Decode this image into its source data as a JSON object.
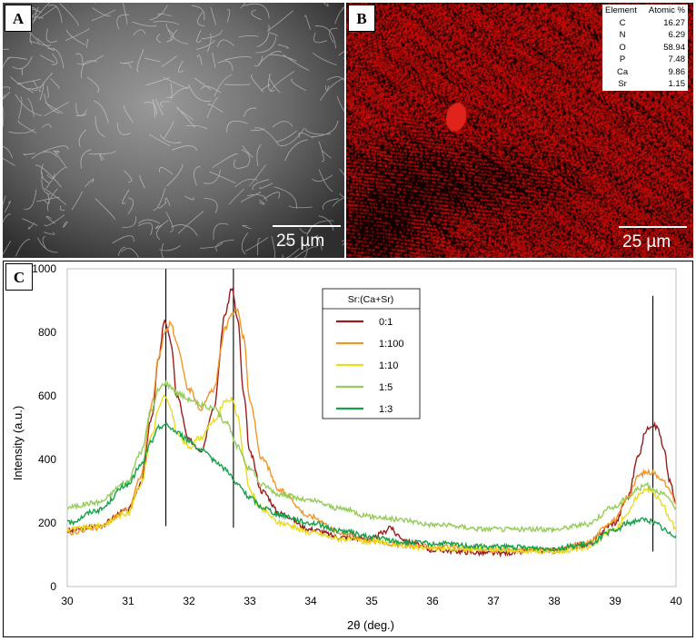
{
  "panels": {
    "a": {
      "letter": "A",
      "scale_label": "25 µm"
    },
    "b": {
      "letter": "B",
      "scale_label": "25 µm"
    },
    "c": {
      "letter": "C"
    }
  },
  "eds_table": {
    "headers": [
      "Element",
      "Atomic %"
    ],
    "rows": [
      {
        "element": "C",
        "value": "16.27"
      },
      {
        "element": "N",
        "value": "6.29"
      },
      {
        "element": "O",
        "value": "58.94"
      },
      {
        "element": "P",
        "value": "7.48"
      },
      {
        "element": "Ca",
        "value": "9.86"
      },
      {
        "element": "Sr",
        "value": "1.15"
      }
    ]
  },
  "colors": {
    "map_red": "#e0241b",
    "series": [
      "#9b1c1c",
      "#f0962a",
      "#e8dc1f",
      "#96cc5a",
      "#17a04a"
    ]
  },
  "chart_data": {
    "type": "line",
    "title": "",
    "xlabel": "2θ (deg.)",
    "ylabel": "Intensity (a.u.)",
    "xlim": [
      30,
      40
    ],
    "ylim": [
      0,
      1000
    ],
    "xticks": [
      "30",
      "31",
      "32",
      "33",
      "34",
      "35",
      "36",
      "37",
      "38",
      "39",
      "40"
    ],
    "yticks": [
      "0",
      "200",
      "400",
      "600",
      "800",
      "1000"
    ],
    "grid": false,
    "legend": {
      "title": "Sr:(Ca+Sr)",
      "placement": "top-center"
    },
    "reference_lines": [
      {
        "x": 31.62,
        "y": [
          190,
          1000
        ]
      },
      {
        "x": 32.73,
        "y": [
          185,
          1000
        ]
      },
      {
        "x": 39.62,
        "y": [
          110,
          915
        ]
      }
    ],
    "series": [
      {
        "name": "0:1",
        "x": [
          30,
          30.5,
          31,
          31.2,
          31.4,
          31.5,
          31.6,
          31.7,
          31.8,
          32,
          32.2,
          32.4,
          32.6,
          32.7,
          32.8,
          32.9,
          33,
          33.2,
          33.5,
          34,
          34.5,
          35,
          35.2,
          35.3,
          35.4,
          35.6,
          36,
          37,
          38,
          38.5,
          39,
          39.2,
          39.4,
          39.5,
          39.6,
          39.7,
          39.8,
          39.9,
          40
        ],
        "y": [
          175,
          190,
          240,
          320,
          540,
          720,
          840,
          770,
          600,
          460,
          430,
          560,
          860,
          940,
          840,
          600,
          420,
          300,
          230,
          180,
          155,
          150,
          170,
          190,
          165,
          140,
          115,
          105,
          115,
          130,
          200,
          280,
          420,
          490,
          510,
          500,
          430,
          330,
          260
        ]
      },
      {
        "name": "1:100",
        "x": [
          30,
          30.5,
          31,
          31.2,
          31.4,
          31.5,
          31.6,
          31.7,
          31.8,
          32,
          32.2,
          32.4,
          32.6,
          32.7,
          32.8,
          32.9,
          33,
          33.2,
          33.5,
          34,
          34.5,
          35,
          35.5,
          36,
          37,
          38,
          38.5,
          39,
          39.2,
          39.4,
          39.5,
          39.6,
          39.7,
          39.8,
          39.9,
          40
        ],
        "y": [
          170,
          185,
          240,
          340,
          580,
          720,
          800,
          830,
          760,
          620,
          560,
          620,
          810,
          860,
          870,
          780,
          580,
          400,
          300,
          220,
          170,
          145,
          130,
          125,
          115,
          115,
          135,
          210,
          280,
          350,
          360,
          360,
          350,
          330,
          300,
          260
        ]
      },
      {
        "name": "1:10",
        "x": [
          30,
          30.5,
          31,
          31.2,
          31.4,
          31.5,
          31.6,
          31.7,
          31.8,
          32,
          32.2,
          32.4,
          32.6,
          32.7,
          32.8,
          32.9,
          33,
          33.2,
          33.5,
          34,
          34.5,
          35,
          36,
          37,
          38,
          38.5,
          39,
          39.2,
          39.4,
          39.5,
          39.6,
          39.7,
          39.8,
          39.9,
          40
        ],
        "y": [
          180,
          190,
          230,
          320,
          480,
          560,
          600,
          560,
          480,
          440,
          470,
          520,
          580,
          590,
          540,
          400,
          300,
          240,
          200,
          170,
          150,
          140,
          120,
          115,
          110,
          120,
          180,
          230,
          290,
          310,
          300,
          280,
          250,
          210,
          180
        ]
      },
      {
        "name": "1:5",
        "x": [
          30,
          30.5,
          31,
          31.2,
          31.4,
          31.5,
          31.6,
          31.7,
          31.8,
          32,
          32.2,
          32.4,
          32.6,
          32.8,
          33,
          33.2,
          33.5,
          34,
          34.5,
          35,
          35.5,
          36,
          37,
          38,
          38.5,
          39,
          39.2,
          39.4,
          39.5,
          39.6,
          39.7,
          39.8,
          39.9,
          40
        ],
        "y": [
          250,
          265,
          330,
          420,
          560,
          620,
          640,
          630,
          610,
          590,
          570,
          560,
          520,
          440,
          370,
          320,
          290,
          270,
          245,
          220,
          210,
          195,
          180,
          180,
          195,
          250,
          280,
          310,
          320,
          310,
          300,
          290,
          270,
          250
        ]
      },
      {
        "name": "1:3",
        "x": [
          30,
          30.5,
          31,
          31.2,
          31.4,
          31.5,
          31.6,
          31.7,
          31.8,
          32,
          32.2,
          32.4,
          32.6,
          32.8,
          33,
          33.2,
          33.5,
          34,
          34.5,
          35,
          35.5,
          36,
          37,
          38,
          38.5,
          39,
          39.2,
          39.4,
          39.5,
          39.6,
          39.7,
          39.8,
          39.9,
          40
        ],
        "y": [
          200,
          240,
          320,
          380,
          460,
          500,
          510,
          500,
          485,
          460,
          430,
          400,
          370,
          320,
          280,
          250,
          225,
          200,
          175,
          155,
          140,
          135,
          125,
          120,
          130,
          175,
          200,
          210,
          210,
          205,
          195,
          180,
          165,
          160
        ]
      }
    ]
  }
}
